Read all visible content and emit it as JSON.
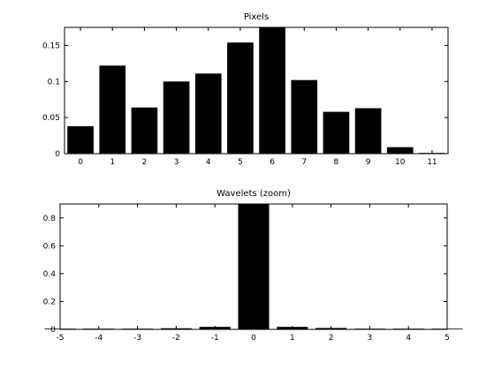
{
  "chart_data": [
    {
      "type": "bar",
      "title": "Pixels",
      "xlabel": "",
      "ylabel": "",
      "x": [
        0,
        1,
        2,
        3,
        4,
        5,
        6,
        7,
        8,
        9,
        10,
        11
      ],
      "values": [
        0.038,
        0.122,
        0.064,
        0.1,
        0.111,
        0.154,
        0.175,
        0.102,
        0.058,
        0.063,
        0.009,
        0.001
      ],
      "xlim": [
        -0.5,
        11.5
      ],
      "ylim": [
        0,
        0.175
      ],
      "xticks": [
        "0",
        "1",
        "2",
        "3",
        "4",
        "5",
        "6",
        "7",
        "8",
        "9",
        "10",
        "11"
      ],
      "yticks": [
        0,
        0.05,
        0.1,
        0.15
      ],
      "ytick_labels": [
        "0",
        "0.05",
        "0.1",
        "0.15"
      ],
      "bar_color": "#000000",
      "grid": false,
      "legend": "none"
    },
    {
      "type": "bar",
      "title": "Wavelets (zoom)",
      "xlabel": "",
      "ylabel": "",
      "x": [
        -5,
        -4,
        -3,
        -2,
        -1,
        0,
        1,
        2,
        3,
        4,
        5
      ],
      "values": [
        0.003,
        0.003,
        0.004,
        0.008,
        0.018,
        0.9,
        0.018,
        0.01,
        0.004,
        0.003,
        0.002
      ],
      "xlim": [
        -5,
        5
      ],
      "ylim": [
        0,
        0.9
      ],
      "xticks": [
        "-5",
        "-4",
        "-3",
        "-2",
        "-1",
        "0",
        "1",
        "2",
        "3",
        "4",
        "5"
      ],
      "yticks": [
        0,
        0.2,
        0.4,
        0.6,
        0.8
      ],
      "ytick_labels": [
        "0",
        "0.2",
        "0.4",
        "0.6",
        "0.8"
      ],
      "bar_color": "#000000",
      "grid": false,
      "legend": "none"
    }
  ]
}
